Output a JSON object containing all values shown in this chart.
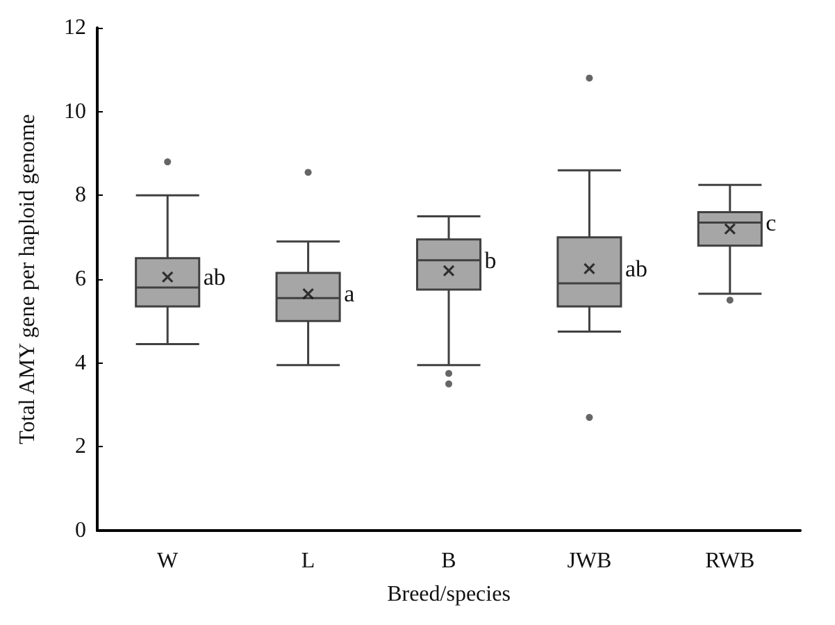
{
  "chart_data": {
    "type": "box",
    "xlabel": "Breed/species",
    "ylabel": "Total AMY gene per haploid genome",
    "categories": [
      "W",
      "L",
      "B",
      "JWB",
      "RWB"
    ],
    "series": [
      {
        "color": "#a6a6a6",
        "boxes": [
          {
            "low": 4.45,
            "q1": 5.35,
            "median": 5.8,
            "q3": 6.5,
            "high": 8.0,
            "mean": 6.05,
            "outliers": [
              8.8
            ]
          },
          {
            "low": 3.95,
            "q1": 5.0,
            "median": 5.55,
            "q3": 6.15,
            "high": 6.9,
            "mean": 5.65,
            "outliers": [
              8.55
            ]
          },
          {
            "low": 3.95,
            "q1": 5.75,
            "median": 6.45,
            "q3": 6.95,
            "high": 7.5,
            "mean": 6.2,
            "outliers": [
              3.75,
              3.5
            ]
          },
          {
            "low": 4.75,
            "q1": 5.35,
            "median": 5.9,
            "q3": 7.0,
            "high": 8.6,
            "mean": 6.25,
            "outliers": [
              10.8,
              2.7
            ]
          },
          {
            "low": 5.65,
            "q1": 6.8,
            "median": 7.35,
            "q3": 7.6,
            "high": 8.25,
            "mean": 7.2,
            "outliers": [
              5.5
            ]
          }
        ]
      }
    ],
    "annotations": [
      "ab",
      "a",
      "b",
      "ab",
      "c"
    ],
    "ylim": [
      0,
      12
    ],
    "yticks": [
      0,
      2,
      4,
      6,
      8,
      10,
      12
    ],
    "grid": false
  }
}
